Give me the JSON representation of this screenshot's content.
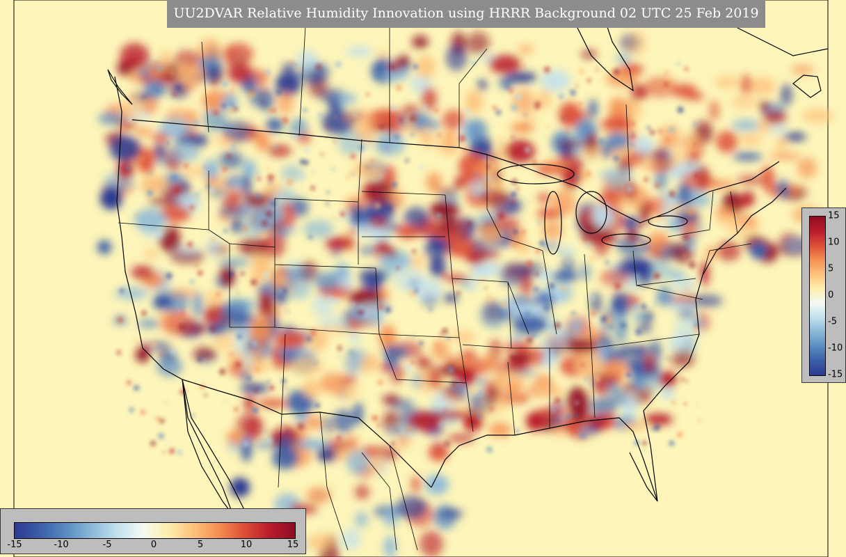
{
  "title": "UU2DVAR Relative Humidity Innovation using HRRR Background 02 UTC 25 Feb 2019",
  "colorbar": {
    "min": -15,
    "max": 15,
    "colormap": "RdYlBu_r",
    "horizontal_ticks": [
      "-15",
      "-10",
      "-5",
      "0",
      "5",
      "10",
      "15"
    ],
    "vertical_ticks": [
      "15",
      "10",
      "5",
      "0",
      "-5",
      "-10",
      "-15"
    ],
    "colors": [
      "#2c3a93",
      "#3c5fa8",
      "#5a8bc1",
      "#8ab8d8",
      "#c0e0ee",
      "#f4f9f2",
      "#fdefb0",
      "#fdc27c",
      "#f59053",
      "#dd4f38",
      "#b91c2b",
      "#8f0d24"
    ]
  },
  "background_color": "#fdf5b9",
  "ocean_color": "#fdf5b9"
}
